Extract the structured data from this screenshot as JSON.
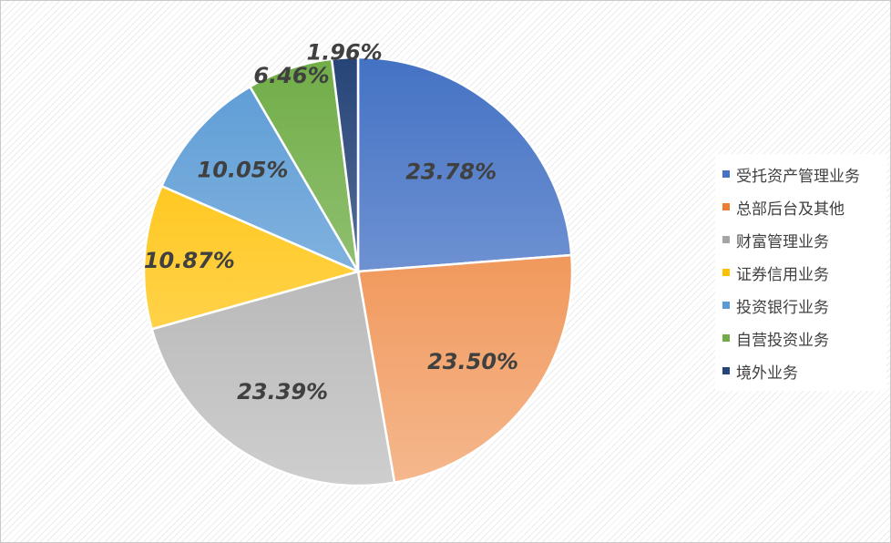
{
  "chart_data": {
    "type": "pie",
    "title": "",
    "categories": [
      "受托资产管理业务",
      "总部后台及其他",
      "财富管理业务",
      "证券信用业务",
      "投资银行业务",
      "自营投资业务",
      "境外业务"
    ],
    "values": [
      23.78,
      23.5,
      23.39,
      10.87,
      10.05,
      6.46,
      1.96
    ],
    "data_labels": [
      "23.78%",
      "23.50%",
      "23.39%",
      "10.87%",
      "10.05%",
      "6.46%",
      "1.96%"
    ],
    "colors": [
      "#4472C4",
      "#ED7D31",
      "#A5A5A5",
      "#FFC000",
      "#5B9BD5",
      "#70AD47",
      "#264478"
    ],
    "legend_position": "right",
    "start_angle": "12 o'clock, clockwise",
    "label_style": "bold italic"
  }
}
